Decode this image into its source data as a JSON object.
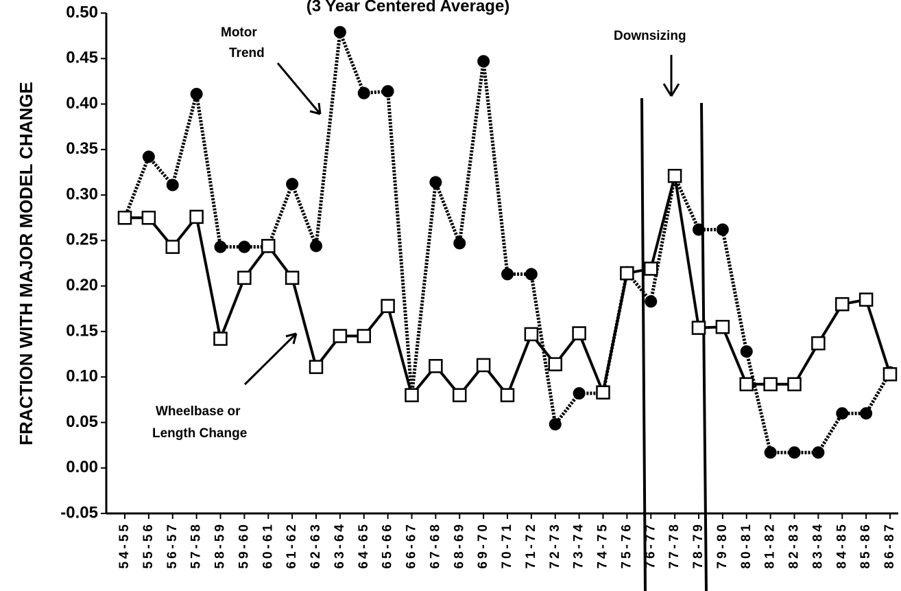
{
  "chart_data": {
    "type": "line",
    "title": "(3 Year Centered Average)",
    "y_label": "FRACTION WITH MAJOR MODEL CHANGE",
    "annotations": [
      {
        "lines": [
          "Motor",
          "Trend"
        ]
      },
      {
        "lines": [
          "Downsizing"
        ]
      },
      {
        "lines": [
          "Wheelbase or",
          "Length Change"
        ]
      }
    ],
    "categories": [
      "54-55",
      "55-56",
      "56-57",
      "57-58",
      "58-59",
      "59-60",
      "60-61",
      "61-62",
      "62-63",
      "63-64",
      "64-65",
      "65-66",
      "66-67",
      "67-68",
      "68-69",
      "69-70",
      "70-71",
      "71-72",
      "72-73",
      "73-74",
      "74-75",
      "75-76",
      "76-77",
      "77-78",
      "78-79",
      "79-80",
      "80-81",
      "81-82",
      "82-83",
      "83-84",
      "84-85",
      "85-86",
      "86-87"
    ],
    "series": [
      {
        "color": "#000000",
        "style": "dotted",
        "marker": "circle",
        "values": [
          0.275,
          0.342,
          0.311,
          0.411,
          0.243,
          0.243,
          0.243,
          0.312,
          0.244,
          0.479,
          0.412,
          0.414,
          0.08,
          0.314,
          0.247,
          0.447,
          0.213,
          0.213,
          0.048,
          0.082,
          0.082,
          0.215,
          0.183,
          0.32,
          0.262,
          0.262,
          0.128,
          0.017,
          0.017,
          0.017,
          0.06,
          0.06,
          0.105
        ]
      },
      {
        "color": "#000000",
        "style": "solid",
        "marker": "square",
        "values": [
          0.275,
          0.275,
          0.243,
          0.276,
          0.142,
          0.209,
          0.244,
          0.209,
          0.111,
          0.145,
          0.145,
          0.178,
          0.08,
          0.112,
          0.08,
          0.113,
          0.08,
          0.147,
          0.114,
          0.148,
          0.083,
          0.214,
          0.219,
          0.321,
          0.154,
          0.155,
          0.092,
          0.092,
          0.092,
          0.137,
          0.18,
          0.185,
          0.103
        ]
      }
    ],
    "ylim": [
      -0.05,
      0.5
    ],
    "yticks": [
      {
        "value": 0.5,
        "label": "0.50"
      },
      {
        "value": 0.45,
        "label": "0.45"
      },
      {
        "value": 0.4,
        "label": "0.40"
      },
      {
        "value": 0.35,
        "label": "0.35"
      },
      {
        "value": 0.3,
        "label": "0.30"
      },
      {
        "value": 0.25,
        "label": "0.25"
      },
      {
        "value": 0.2,
        "label": "0.20"
      },
      {
        "value": 0.15,
        "label": "0.15"
      },
      {
        "value": 0.1,
        "label": "0.10"
      },
      {
        "value": 0.05,
        "label": "0.05"
      },
      {
        "value": 0,
        "label": "0.00"
      },
      {
        "value": -0.05,
        "label": "-0.05"
      }
    ],
    "grid": false
  }
}
